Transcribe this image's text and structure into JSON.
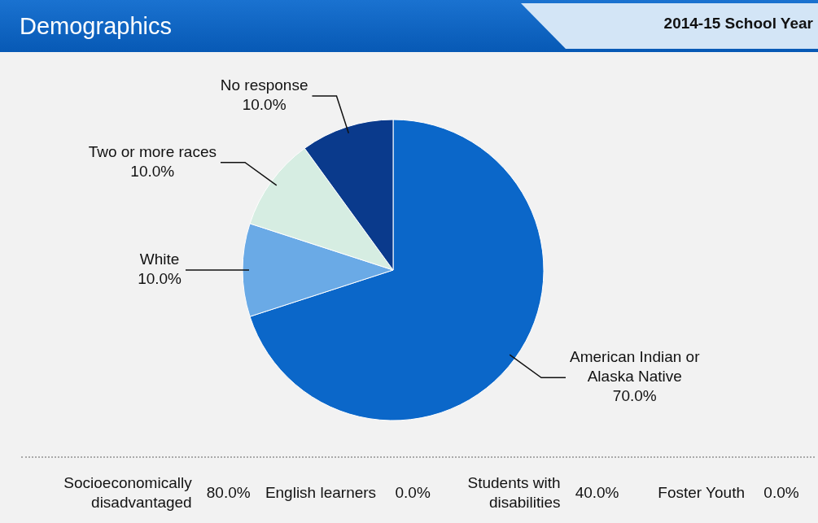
{
  "chart_data": {
    "type": "pie",
    "title": "Demographics",
    "subtitle": "2014-15 School Year",
    "categories": [
      "American Indian or Alaska Native",
      "White",
      "Two or more races",
      "No response"
    ],
    "values": [
      70,
      10,
      10,
      10
    ],
    "value_labels": [
      "70.0%",
      "10.0%",
      "10.0%",
      "10.0%"
    ],
    "colors": [
      "#0b67c9",
      "#6aaae6",
      "#d6ede2",
      "#0a3a8c"
    ],
    "legend": false,
    "annotations": [
      "Socioeconomically disadvantaged",
      "80.0%",
      "English learners",
      "0.0%",
      "Students with disabilities",
      "40.0%",
      "Foster Youth",
      "0.0%"
    ]
  }
}
